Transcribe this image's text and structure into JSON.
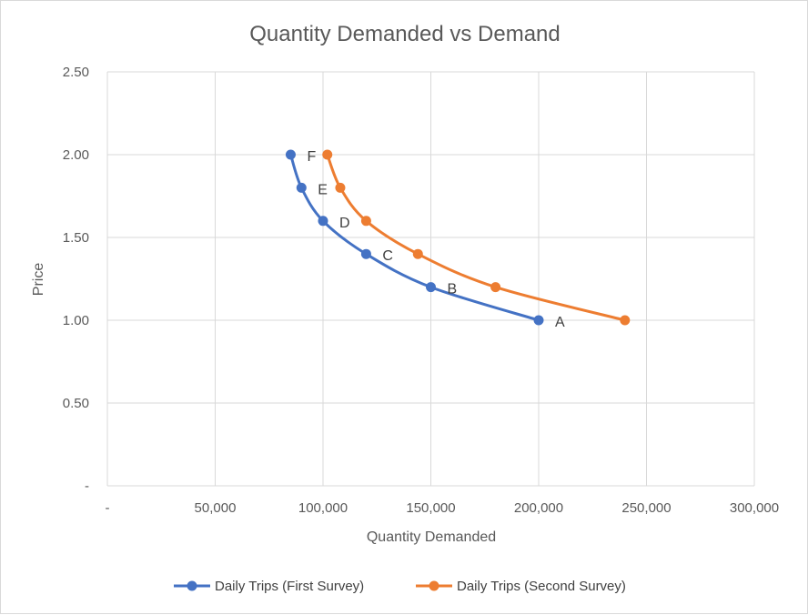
{
  "chart_data": {
    "type": "line",
    "title": "Quantity Demanded vs Demand",
    "xlabel": "Quantity Demanded",
    "ylabel": "Price",
    "xlim": [
      0,
      300000
    ],
    "ylim": [
      0,
      2.5
    ],
    "x_ticks": [
      {
        "value": 0,
        "label": "-"
      },
      {
        "value": 50000,
        "label": "50,000"
      },
      {
        "value": 100000,
        "label": "100,000"
      },
      {
        "value": 150000,
        "label": "150,000"
      },
      {
        "value": 200000,
        "label": "200,000"
      },
      {
        "value": 250000,
        "label": "250,000"
      },
      {
        "value": 300000,
        "label": "300,000"
      }
    ],
    "y_ticks": [
      {
        "value": 0,
        "label": "-"
      },
      {
        "value": 0.5,
        "label": "0.50"
      },
      {
        "value": 1.0,
        "label": "1.00"
      },
      {
        "value": 1.5,
        "label": "1.50"
      },
      {
        "value": 2.0,
        "label": "2.00"
      },
      {
        "value": 2.5,
        "label": "2.50"
      }
    ],
    "grid": true,
    "legend_position": "bottom",
    "series": [
      {
        "name": "Daily Trips (First Survey)",
        "color": "#4472c4",
        "points": [
          {
            "x": 200000,
            "y": 1.0,
            "label": "A"
          },
          {
            "x": 150000,
            "y": 1.2,
            "label": "B"
          },
          {
            "x": 120000,
            "y": 1.4,
            "label": "C"
          },
          {
            "x": 100000,
            "y": 1.6,
            "label": "D"
          },
          {
            "x": 90000,
            "y": 1.8,
            "label": "E"
          },
          {
            "x": 85000,
            "y": 2.0,
            "label": "F"
          }
        ]
      },
      {
        "name": "Daily Trips (Second Survey)",
        "color": "#ed7d31",
        "points": [
          {
            "x": 240000,
            "y": 1.0
          },
          {
            "x": 180000,
            "y": 1.2
          },
          {
            "x": 144000,
            "y": 1.4
          },
          {
            "x": 120000,
            "y": 1.6
          },
          {
            "x": 108000,
            "y": 1.8
          },
          {
            "x": 102000,
            "y": 2.0
          }
        ]
      }
    ]
  }
}
